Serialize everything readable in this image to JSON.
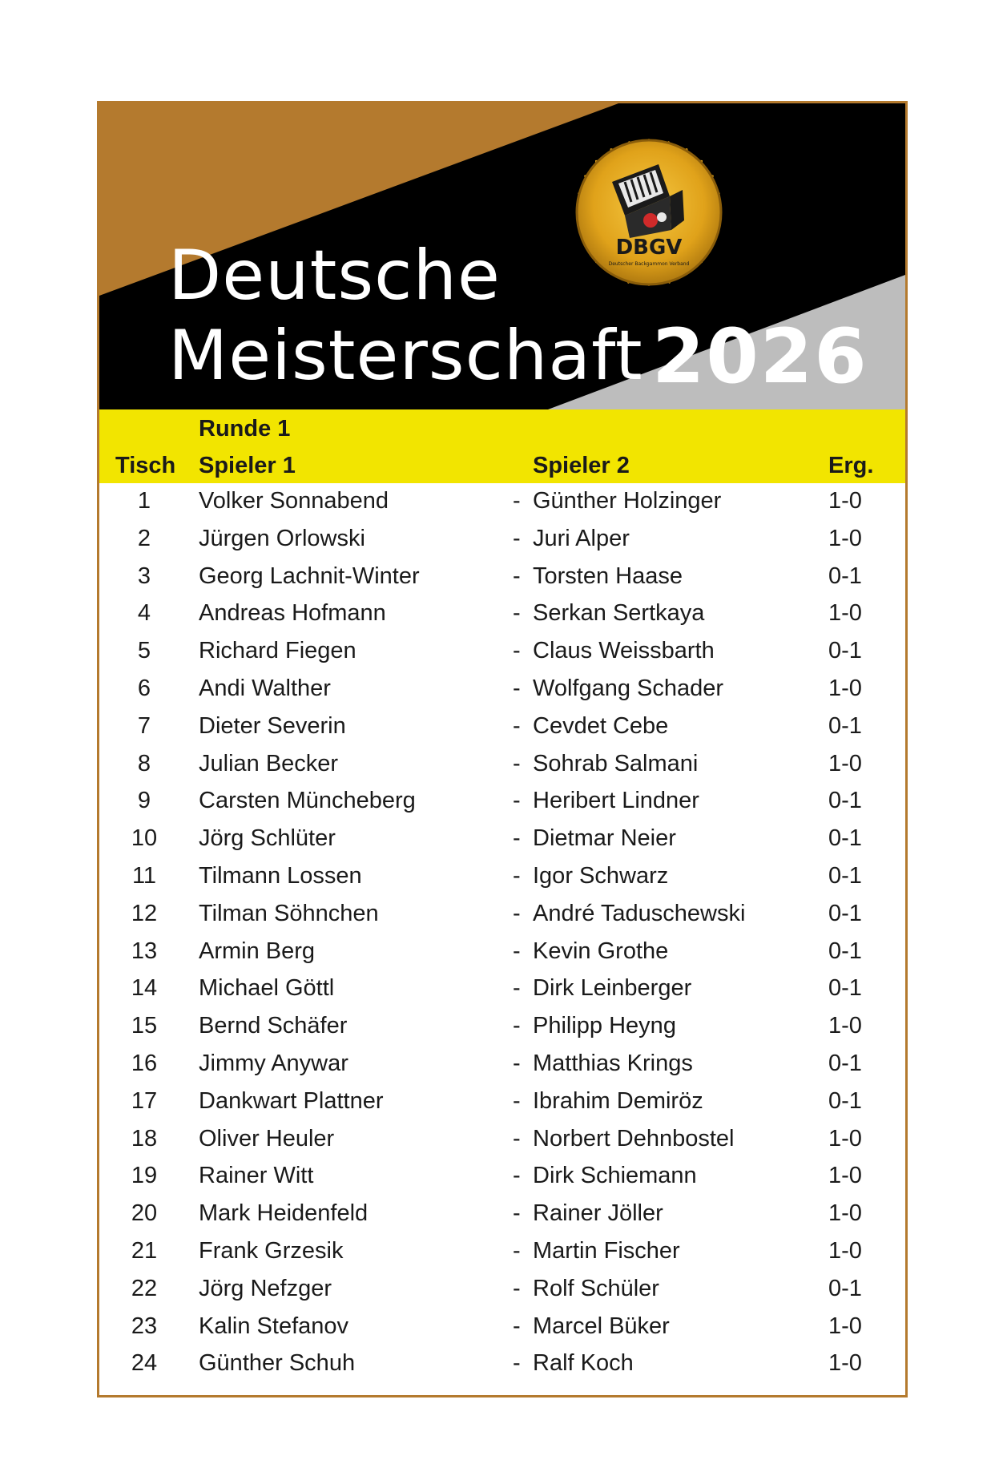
{
  "banner": {
    "title_line1": "Deutsche",
    "title_line2": "Meisterschaft",
    "year": "2026",
    "logo_text": "DBGV",
    "logo_subtext": "Deutscher Backgammon Verband",
    "colors": {
      "gold": "#b47a2e",
      "black": "#000000",
      "grey": "#bdbdbd",
      "yellow": "#f2e500"
    }
  },
  "table": {
    "round": "Runde 1",
    "headers": {
      "table": "Tisch",
      "player1": "Spieler 1",
      "player2": "Spieler 2",
      "result": "Erg."
    },
    "separator": "-",
    "rows": [
      {
        "table": "1",
        "player1": "Volker Sonnabend",
        "player2": "Günther Holzinger",
        "result": "1-0"
      },
      {
        "table": "2",
        "player1": "Jürgen Orlowski",
        "player2": "Juri Alper",
        "result": "1-0"
      },
      {
        "table": "3",
        "player1": "Georg Lachnit-Winter",
        "player2": "Torsten Haase",
        "result": "0-1"
      },
      {
        "table": "4",
        "player1": "Andreas Hofmann",
        "player2": "Serkan Sertkaya",
        "result": "1-0"
      },
      {
        "table": "5",
        "player1": "Richard Fiegen",
        "player2": "Claus Weissbarth",
        "result": "0-1"
      },
      {
        "table": "6",
        "player1": "Andi Walther",
        "player2": "Wolfgang Schader",
        "result": "1-0"
      },
      {
        "table": "7",
        "player1": "Dieter Severin",
        "player2": "Cevdet Cebe",
        "result": "0-1"
      },
      {
        "table": "8",
        "player1": "Julian Becker",
        "player2": "Sohrab Salmani",
        "result": "1-0"
      },
      {
        "table": "9",
        "player1": "Carsten Müncheberg",
        "player2": "Heribert Lindner",
        "result": "0-1"
      },
      {
        "table": "10",
        "player1": "Jörg Schlüter",
        "player2": "Dietmar Neier",
        "result": "0-1"
      },
      {
        "table": "11",
        "player1": "Tilmann Lossen",
        "player2": "Igor Schwarz",
        "result": "0-1"
      },
      {
        "table": "12",
        "player1": "Tilman Söhnchen",
        "player2": "André Taduschewski",
        "result": "0-1"
      },
      {
        "table": "13",
        "player1": "Armin Berg",
        "player2": "Kevin Grothe",
        "result": "0-1"
      },
      {
        "table": "14",
        "player1": "Michael Göttl",
        "player2": "Dirk Leinberger",
        "result": "0-1"
      },
      {
        "table": "15",
        "player1": "Bernd Schäfer",
        "player2": "Philipp Heyng",
        "result": "1-0"
      },
      {
        "table": "16",
        "player1": "Jimmy Anywar",
        "player2": "Matthias Krings",
        "result": "0-1"
      },
      {
        "table": "17",
        "player1": "Dankwart Plattner",
        "player2": "Ibrahim Demiröz",
        "result": "0-1"
      },
      {
        "table": "18",
        "player1": "Oliver Heuler",
        "player2": "Norbert Dehnbostel",
        "result": "1-0"
      },
      {
        "table": "19",
        "player1": "Rainer Witt",
        "player2": "Dirk Schiemann",
        "result": "1-0"
      },
      {
        "table": "20",
        "player1": "Mark Heidenfeld",
        "player2": "Rainer Jöller",
        "result": "1-0"
      },
      {
        "table": "21",
        "player1": "Frank Grzesik",
        "player2": "Martin Fischer",
        "result": "1-0"
      },
      {
        "table": "22",
        "player1": "Jörg Nefzger",
        "player2": "Rolf Schüler",
        "result": "0-1"
      },
      {
        "table": "23",
        "player1": "Kalin Stefanov",
        "player2": "Marcel Büker",
        "result": "1-0"
      },
      {
        "table": "24",
        "player1": "Günther Schuh",
        "player2": "Ralf Koch",
        "result": "1-0"
      }
    ]
  }
}
